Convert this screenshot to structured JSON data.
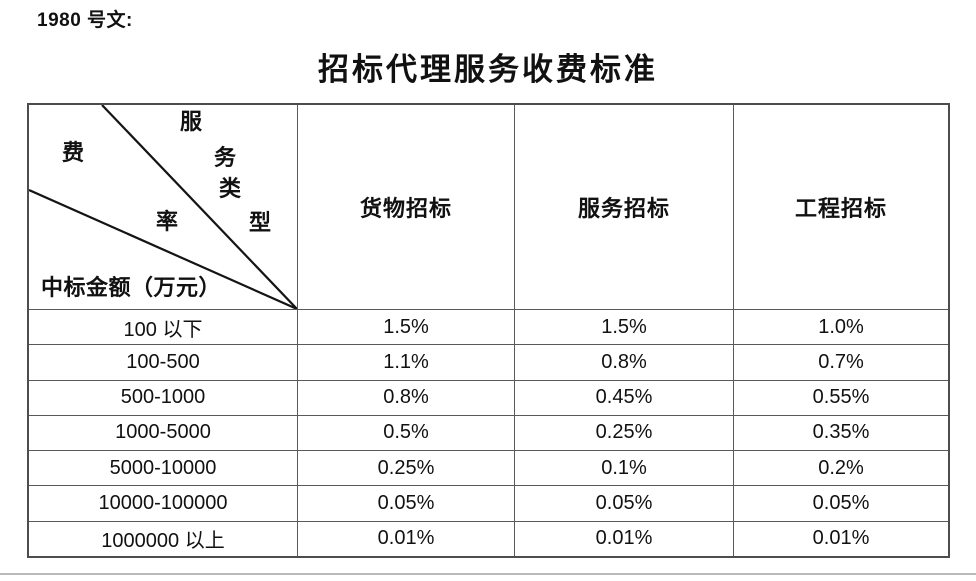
{
  "page": {
    "doc_number_label": "1980 号文:",
    "title": "招标代理服务收费标准"
  },
  "table": {
    "corner": {
      "service_type_chars": [
        "服",
        "务",
        "类",
        "型"
      ],
      "fee_rate_chars": [
        "费",
        "率"
      ],
      "row_axis_label": "中标金额（万元）"
    },
    "column_headers": [
      "货物招标",
      "服务招标",
      "工程招标"
    ],
    "rows": [
      {
        "amount_range": "100 以下",
        "values": [
          "1.5%",
          "1.5%",
          "1.0%"
        ]
      },
      {
        "amount_range": "100-500",
        "values": [
          "1.1%",
          "0.8%",
          "0.7%"
        ]
      },
      {
        "amount_range": "500-1000",
        "values": [
          "0.8%",
          "0.45%",
          "0.55%"
        ]
      },
      {
        "amount_range": "1000-5000",
        "values": [
          "0.5%",
          "0.25%",
          "0.35%"
        ]
      },
      {
        "amount_range": "5000-10000",
        "values": [
          "0.25%",
          "0.1%",
          "0.2%"
        ]
      },
      {
        "amount_range": "10000-100000",
        "values": [
          "0.05%",
          "0.05%",
          "0.05%"
        ]
      },
      {
        "amount_range": "1000000 以上",
        "values": [
          "0.01%",
          "0.01%",
          "0.01%"
        ]
      }
    ]
  },
  "colors": {
    "grid_line": "#595959",
    "diagonal_line": "#141414",
    "text": "#111111"
  }
}
